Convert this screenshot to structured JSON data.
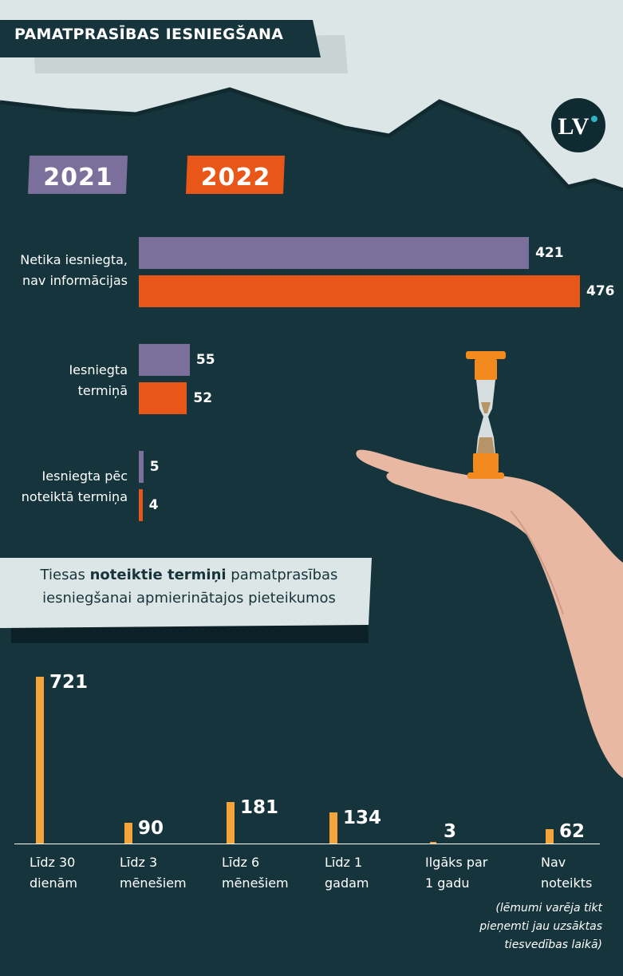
{
  "header": {
    "title": "PAMATPRASĪBAS IESNIEGŠANA"
  },
  "logo": {
    "text": "LV",
    "icon": "lv-logo-icon",
    "dot_color": "#2fb3c6"
  },
  "colors": {
    "background": "#15343b",
    "sky": "#dde6e6",
    "year_2021": "#7b6f9c",
    "year_2022": "#e85618",
    "bar_bottom": "#f5a33b"
  },
  "legend": {
    "year1": "2021",
    "year2": "2022"
  },
  "subtitle": {
    "part1": "Tiesas ",
    "bold": "noteiktie termiņi",
    "part2": " pamatprasības iesniegšanai apmierinātajos pieteikumos"
  },
  "note": {
    "line1": "(lēmumi varēja tikt",
    "line2": "pieņemti jau uzsāktas",
    "line3": "tiesvedības laikā)"
  },
  "chart_data": [
    {
      "type": "bar",
      "orientation": "horizontal",
      "categories": [
        [
          "Netika iesniegta,",
          "nav informācijas"
        ],
        [
          "Iesniegta",
          "termiņā"
        ],
        [
          "Iesniegta pēc",
          "noteiktā termiņa"
        ]
      ],
      "series": [
        {
          "name": "2021",
          "values": [
            421,
            55,
            5
          ]
        },
        {
          "name": "2022",
          "values": [
            476,
            52,
            4
          ]
        }
      ],
      "title": "",
      "xlabel": "",
      "ylabel": ""
    },
    {
      "type": "bar",
      "orientation": "vertical",
      "title": "",
      "categories": [
        [
          "Līdz 30",
          "dienām"
        ],
        [
          "Līdz 3",
          "mēnešiem"
        ],
        [
          "Līdz 6",
          "mēnešiem"
        ],
        [
          "Līdz 1",
          "gadam"
        ],
        [
          "Ilgāks par",
          "1 gadu"
        ],
        [
          "Nav",
          "noteikts"
        ]
      ],
      "values": [
        721,
        90,
        181,
        134,
        3,
        62
      ],
      "xlabel": "",
      "ylabel": ""
    }
  ]
}
